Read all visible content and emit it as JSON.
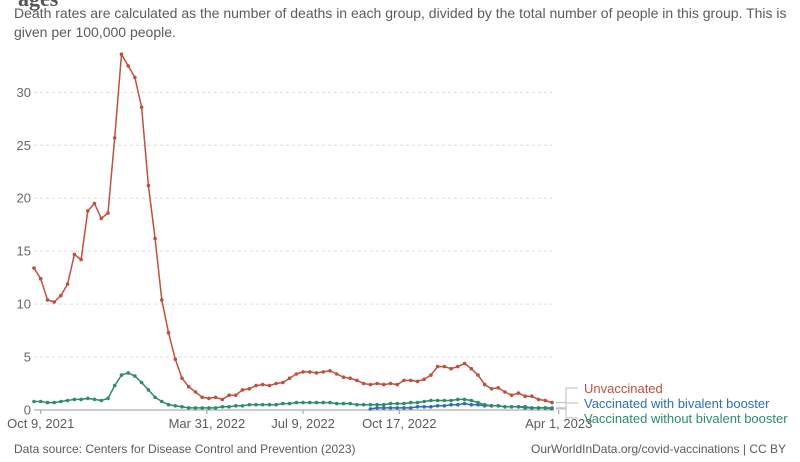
{
  "page": {
    "title": "ages",
    "subtitle": "Death rates are calculated as the number of deaths in each group, divided by the total number of people in this group. This is given per 100,000 people.",
    "source": "Data source: Centers for Disease Control and Prevention (2023)",
    "license": "OurWorldInData.org/covid-vaccinations | CC BY"
  },
  "chart_data": {
    "type": "line",
    "title": "",
    "xlabel": "",
    "ylabel": "",
    "ylim": [
      0,
      34
    ],
    "yticks": [
      0,
      5,
      10,
      15,
      20,
      25,
      30
    ],
    "xlim": [
      0,
      77
    ],
    "x_unit": "weeks since Oct 2, 2021",
    "xticks": [
      {
        "x": 1,
        "label": "Oct 9, 2021"
      },
      {
        "x": 25.7,
        "label": "Mar 31, 2022"
      },
      {
        "x": 40,
        "label": "Jul 9, 2022"
      },
      {
        "x": 54.3,
        "label": "Oct 17, 2022"
      },
      {
        "x": 78,
        "label": "Apr 1, 2023"
      }
    ],
    "grid": true,
    "series": [
      {
        "name": "Unvaccinated",
        "color": "#c0503e",
        "x_start": 0,
        "values": [
          13.4,
          12.4,
          10.4,
          10.2,
          10.8,
          11.9,
          14.7,
          14.2,
          18.8,
          19.5,
          18.1,
          18.6,
          25.7,
          33.6,
          32.5,
          31.4,
          28.6,
          21.2,
          16.2,
          10.4,
          7.3,
          4.8,
          3.0,
          2.2,
          1.7,
          1.2,
          1.1,
          1.2,
          1.0,
          1.4,
          1.4,
          1.9,
          2.0,
          2.3,
          2.4,
          2.3,
          2.5,
          2.6,
          3.0,
          3.4,
          3.6,
          3.6,
          3.5,
          3.6,
          3.7,
          3.4,
          3.1,
          3.0,
          2.8,
          2.5,
          2.4,
          2.5,
          2.4,
          2.5,
          2.4,
          2.8,
          2.8,
          2.7,
          2.9,
          3.3,
          4.1,
          4.1,
          3.9,
          4.1,
          4.4,
          3.9,
          3.3,
          2.4,
          2.0,
          2.1,
          1.7,
          1.4,
          1.6,
          1.3,
          1.3,
          1.0,
          0.9,
          0.7
        ]
      },
      {
        "name": "Vaccinated with bivalent booster",
        "color": "#2f6eb5",
        "x_start": 50,
        "values": [
          0.1,
          0.2,
          0.2,
          0.2,
          0.2,
          0.2,
          0.2,
          0.3,
          0.3,
          0.3,
          0.4,
          0.4,
          0.5,
          0.5,
          0.6,
          0.5,
          0.5,
          0.4,
          0.4,
          0.4,
          0.3,
          0.3,
          0.3,
          0.3,
          0.2,
          0.2,
          0.2,
          0.2
        ]
      },
      {
        "name": "Vaccinated without bivalent booster",
        "color": "#2c8c6b",
        "x_start": 0,
        "values": [
          0.8,
          0.8,
          0.7,
          0.7,
          0.8,
          0.9,
          1.0,
          1.0,
          1.1,
          1.0,
          0.9,
          1.1,
          2.3,
          3.3,
          3.5,
          3.2,
          2.6,
          1.9,
          1.2,
          0.8,
          0.5,
          0.4,
          0.3,
          0.2,
          0.2,
          0.2,
          0.2,
          0.2,
          0.3,
          0.3,
          0.4,
          0.4,
          0.5,
          0.5,
          0.5,
          0.5,
          0.5,
          0.6,
          0.6,
          0.7,
          0.7,
          0.7,
          0.7,
          0.7,
          0.7,
          0.6,
          0.6,
          0.6,
          0.5,
          0.5,
          0.5,
          0.5,
          0.5,
          0.6,
          0.6,
          0.6,
          0.7,
          0.7,
          0.8,
          0.9,
          0.9,
          0.9,
          0.9,
          1.0,
          1.0,
          0.9,
          0.7,
          0.5,
          0.4,
          0.4,
          0.3,
          0.3,
          0.3,
          0.2,
          0.2,
          0.2,
          0.2,
          0.1
        ]
      }
    ]
  }
}
